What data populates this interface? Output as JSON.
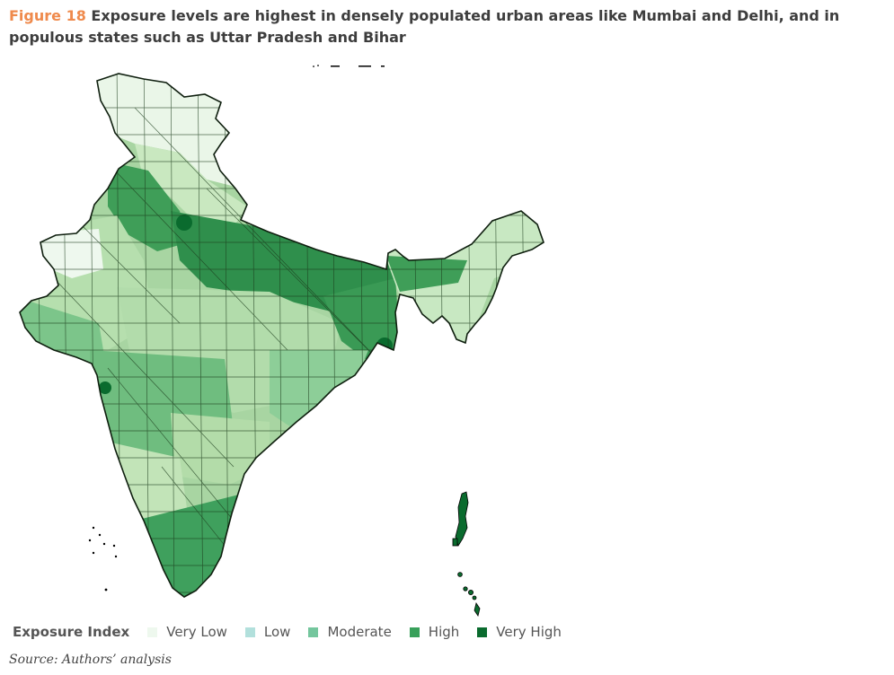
{
  "figure": {
    "label": "Figure 18",
    "title": "Exposure levels are highest in densely populated urban areas like Mumbai and Delhi, and in populous states such as Uttar Pradesh and Bihar"
  },
  "map": {
    "subject": "India districts",
    "legend": {
      "title": "Exposure Index",
      "items": [
        {
          "label": "Very Low",
          "color": "#eef8ee"
        },
        {
          "label": "Low",
          "color": "#b2e0dc"
        },
        {
          "label": "Moderate",
          "color": "#74c69d"
        },
        {
          "label": "High",
          "color": "#38a05a"
        },
        {
          "label": "Very High",
          "color": "#0a6b2e"
        }
      ]
    }
  },
  "source": "Source: Authors’ analysis"
}
